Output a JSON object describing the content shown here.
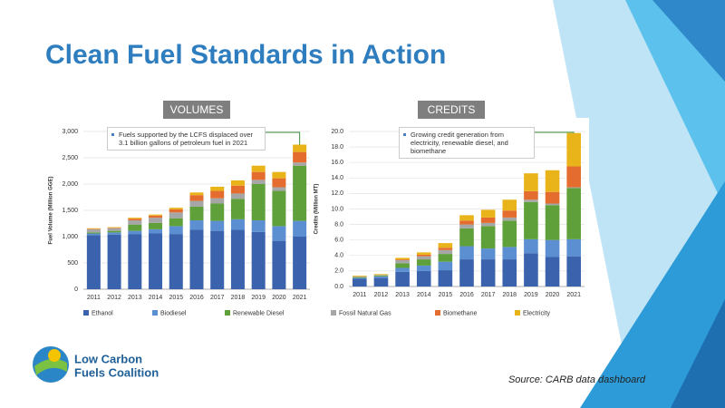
{
  "slide": {
    "title": "Clean Fuel Standards in Action",
    "source": "Source:  CARB data dashboard",
    "logo_line1": "Low Carbon",
    "logo_line2": "Fuels Coalition"
  },
  "chart_data": [
    {
      "type": "bar",
      "stacked": true,
      "section_label": "VOLUMES",
      "y_label": "Fuel Volume (Million GGE)",
      "annotation": "Fuels supported by the LCFS displaced over 3.1 billion gallons of petroleum fuel in 2021",
      "categories": [
        "2011",
        "2012",
        "2013",
        "2014",
        "2015",
        "2016",
        "2017",
        "2018",
        "2019",
        "2020",
        "2021"
      ],
      "ylim": [
        0,
        3000
      ],
      "yticks": [
        0,
        500,
        {
          "value": 1000,
          "label": "1,000"
        },
        {
          "value": 1500,
          "label": "1,500"
        },
        {
          "value": 2000,
          "label": "2,000"
        },
        {
          "value": 2500,
          "label": "2,500"
        },
        {
          "value": 3000,
          "label": "3,000"
        }
      ],
      "series": [
        {
          "name": "Ethanol",
          "color": "#3a62ad",
          "values": [
            1030,
            1040,
            1050,
            1060,
            1050,
            1130,
            1110,
            1130,
            1090,
            920,
            1000
          ]
        },
        {
          "name": "Biodiesel",
          "color": "#5b8fd1",
          "values": [
            30,
            40,
            60,
            80,
            150,
            180,
            190,
            200,
            220,
            280,
            300
          ]
        },
        {
          "name": "Renewable Diesel",
          "color": "#5fa03a",
          "values": [
            20,
            30,
            120,
            120,
            150,
            260,
            330,
            390,
            690,
            670,
            1050
          ]
        },
        {
          "name": "Fossil Natural Gas",
          "color": "#a6a6a6",
          "values": [
            60,
            50,
            80,
            100,
            110,
            110,
            100,
            100,
            80,
            70,
            60
          ]
        },
        {
          "name": "Biomethane",
          "color": "#e36c2e",
          "values": [
            10,
            10,
            30,
            40,
            60,
            110,
            140,
            150,
            150,
            170,
            200
          ]
        },
        {
          "name": "Electricity",
          "color": "#e9b419",
          "values": [
            10,
            10,
            20,
            20,
            30,
            50,
            80,
            100,
            120,
            120,
            140
          ]
        }
      ]
    },
    {
      "type": "bar",
      "stacked": true,
      "section_label": "CREDITS",
      "y_label": "Credits (Million MT)",
      "annotation": "Growing credit generation from electricity, renewable diesel, and biomethane",
      "categories": [
        "2011",
        "2012",
        "2013",
        "2014",
        "2015",
        "2016",
        "2017",
        "2018",
        "2019",
        "2020",
        "2021"
      ],
      "ylim": [
        0,
        20
      ],
      "yticks": [
        {
          "value": 0,
          "label": "0.0"
        },
        {
          "value": 2,
          "label": "2.0"
        },
        {
          "value": 4,
          "label": "4.0"
        },
        {
          "value": 6,
          "label": "6.0"
        },
        {
          "value": 8,
          "label": "8.0"
        },
        {
          "value": 10,
          "label": "10.0"
        },
        {
          "value": 12,
          "label": "12.0"
        },
        {
          "value": 14,
          "label": "14.0"
        },
        {
          "value": 16,
          "label": "16.0"
        },
        {
          "value": 18,
          "label": "18.0"
        },
        {
          "value": 20,
          "label": "20.0"
        }
      ],
      "series": [
        {
          "name": "Ethanol",
          "color": "#3a62ad",
          "values": [
            1.0,
            1.1,
            1.9,
            2.0,
            2.1,
            3.5,
            3.5,
            3.5,
            4.3,
            3.8,
            3.9
          ]
        },
        {
          "name": "Biodiesel",
          "color": "#5b8fd1",
          "values": [
            0.1,
            0.2,
            0.5,
            0.7,
            1.1,
            1.7,
            1.4,
            1.6,
            1.8,
            2.2,
            2.2
          ]
        },
        {
          "name": "Renewable Diesel",
          "color": "#5fa03a",
          "values": [
            0.1,
            0.1,
            0.6,
            0.8,
            1.0,
            2.3,
            2.9,
            3.4,
            4.8,
            4.5,
            6.6
          ]
        },
        {
          "name": "Fossil Natural Gas",
          "color": "#a6a6a6",
          "values": [
            0.1,
            0.1,
            0.4,
            0.4,
            0.5,
            0.5,
            0.4,
            0.4,
            0.3,
            0.2,
            0.1
          ]
        },
        {
          "name": "Biomethane",
          "color": "#e36c2e",
          "values": [
            0.0,
            0.0,
            0.1,
            0.2,
            0.3,
            0.5,
            0.7,
            0.9,
            1.1,
            1.5,
            2.7
          ]
        },
        {
          "name": "Electricity",
          "color": "#e9b419",
          "values": [
            0.1,
            0.1,
            0.2,
            0.3,
            0.6,
            0.7,
            1.0,
            1.4,
            2.3,
            2.8,
            4.3
          ]
        }
      ]
    }
  ]
}
